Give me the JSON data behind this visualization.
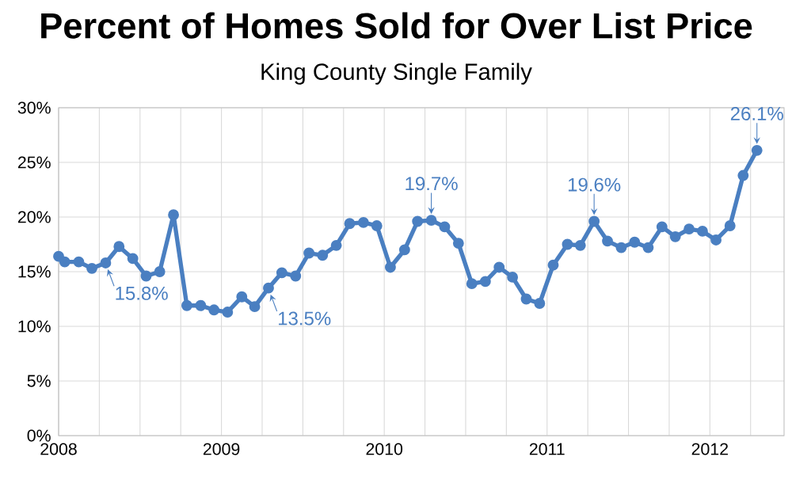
{
  "chart_data": {
    "type": "line",
    "title": "Percent of Homes Sold for Over List Price",
    "subtitle": "King County Single Family",
    "x": [
      "2008-01-01",
      "2008-01-15",
      "2008-02-15",
      "2008-03-15",
      "2008-04-15",
      "2008-05-15",
      "2008-06-15",
      "2008-07-15",
      "2008-08-15",
      "2008-09-15",
      "2008-10-15",
      "2008-11-15",
      "2008-12-15",
      "2009-01-15",
      "2009-02-15",
      "2009-03-15",
      "2009-04-15",
      "2009-05-15",
      "2009-06-15",
      "2009-07-15",
      "2009-08-15",
      "2009-09-15",
      "2009-10-15",
      "2009-11-15",
      "2009-12-15",
      "2010-01-15",
      "2010-02-15",
      "2010-03-15",
      "2010-04-15",
      "2010-05-15",
      "2010-06-15",
      "2010-07-15",
      "2010-08-15",
      "2010-09-15",
      "2010-10-15",
      "2010-11-15",
      "2010-12-15",
      "2011-01-15",
      "2011-02-15",
      "2011-03-15",
      "2011-04-15",
      "2011-05-15",
      "2011-06-15",
      "2011-07-15",
      "2011-08-15",
      "2011-09-15",
      "2011-10-15",
      "2011-11-15",
      "2011-12-15",
      "2012-01-15",
      "2012-02-15",
      "2012-03-15",
      "2012-04-15"
    ],
    "series": [
      {
        "color": "#4a7fc1",
        "values": [
          16.4,
          15.9,
          15.9,
          15.3,
          15.8,
          17.3,
          16.2,
          14.6,
          15.0,
          20.2,
          11.9,
          11.9,
          11.5,
          11.3,
          12.7,
          11.8,
          13.5,
          14.9,
          14.6,
          16.7,
          16.5,
          17.4,
          19.4,
          19.5,
          19.2,
          15.4,
          17.0,
          19.6,
          19.7,
          19.1,
          17.6,
          13.9,
          14.1,
          15.4,
          14.5,
          12.5,
          12.1,
          15.6,
          17.5,
          17.4,
          19.6,
          17.8,
          17.2,
          17.7,
          17.2,
          19.1,
          18.2,
          18.9,
          18.7,
          17.9,
          19.2,
          23.8,
          26.1
        ]
      }
    ],
    "xlim": [
      "2008-01-01",
      "2012-06-15"
    ],
    "xticks": [
      "2008",
      {
        "value": "2008-04",
        "label": null
      },
      {
        "value": "2008-07",
        "label": null
      },
      {
        "value": "2008-10",
        "label": null
      },
      "2009",
      {
        "value": "2009-04",
        "label": null
      },
      {
        "value": "2009-07",
        "label": null
      },
      {
        "value": "2009-10",
        "label": null
      },
      "2010",
      {
        "value": "2010-04",
        "label": null
      },
      {
        "value": "2010-07",
        "label": null
      },
      {
        "value": "2010-10",
        "label": null
      },
      "2011",
      {
        "value": "2011-04",
        "label": null
      },
      {
        "value": "2011-07",
        "label": null
      },
      {
        "value": "2011-10",
        "label": null
      },
      "2012",
      {
        "value": "2012-04",
        "label": null
      }
    ],
    "ylim": [
      0,
      30
    ],
    "yticks": [
      {
        "value": 0,
        "label": "0%"
      },
      {
        "value": 5,
        "label": "5%"
      },
      {
        "value": 10,
        "label": "10%"
      },
      {
        "value": 15,
        "label": "15%"
      },
      {
        "value": 20,
        "label": "20%"
      },
      {
        "value": 25,
        "label": "25%"
      },
      {
        "value": 30,
        "label": "30%"
      }
    ],
    "grid": true,
    "marker": "circle",
    "line_style": "solid",
    "annotations": [
      {
        "text": "15.8%",
        "x": "2008-04-15",
        "y": 15.8
      },
      {
        "text": "13.5%",
        "x": "2009-04-15",
        "y": 13.5
      },
      {
        "text": "19.7%",
        "x": "2010-04-15",
        "y": 19.7
      },
      {
        "text": "19.6%",
        "x": "2011-04-15",
        "y": 19.6
      },
      {
        "text": "26.1%",
        "x": "2012-04-15",
        "y": 26.1
      }
    ]
  }
}
